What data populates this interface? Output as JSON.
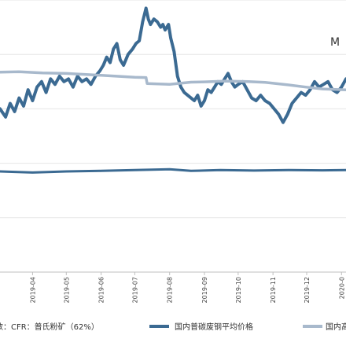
{
  "chart_data": {
    "type": "line",
    "corner_text": "M",
    "x_ticks": [
      "2019-04",
      "2019-05",
      "2019-06",
      "2019-07",
      "2019-08",
      "2019-09",
      "2019-10",
      "2019-11",
      "2019-12",
      "2020-0"
    ],
    "legend": [
      {
        "label": "数：CFR：普氏粉矿（62%）",
        "color": "#d9d9d9",
        "style": "none"
      },
      {
        "label": "国内普碳废钢平均价格",
        "color": "#3b6a92",
        "style": "line"
      },
      {
        "label": "国内高",
        "color": "#a8b9cc",
        "style": "line"
      }
    ],
    "x_range": [
      "2019-03-03",
      "2020-01-05"
    ],
    "y_range": [
      0,
      100
    ],
    "grid": "horizontal",
    "series": [
      {
        "name": "",
        "color": "#3b6a92",
        "points": [
          [
            "2019-03-03",
            60
          ],
          [
            "2019-03-08",
            57
          ],
          [
            "2019-03-12",
            62
          ],
          [
            "2019-03-16",
            59
          ],
          [
            "2019-03-20",
            64
          ],
          [
            "2019-03-24",
            61
          ],
          [
            "2019-03-28",
            67
          ],
          [
            "2019-04-01",
            63
          ],
          [
            "2019-04-05",
            68
          ],
          [
            "2019-04-09",
            70
          ],
          [
            "2019-04-13",
            66
          ],
          [
            "2019-04-17",
            71
          ],
          [
            "2019-04-21",
            69
          ],
          [
            "2019-04-25",
            72
          ],
          [
            "2019-04-29",
            70
          ],
          [
            "2019-05-03",
            71
          ],
          [
            "2019-05-07",
            68
          ],
          [
            "2019-05-11",
            72
          ],
          [
            "2019-05-15",
            70
          ],
          [
            "2019-05-19",
            71
          ],
          [
            "2019-05-23",
            69
          ],
          [
            "2019-05-27",
            72
          ],
          [
            "2019-05-31",
            74
          ],
          [
            "2019-06-03",
            76
          ],
          [
            "2019-06-06",
            79
          ],
          [
            "2019-06-09",
            77
          ],
          [
            "2019-06-12",
            82
          ],
          [
            "2019-06-15",
            84
          ],
          [
            "2019-06-18",
            78
          ],
          [
            "2019-06-21",
            76
          ],
          [
            "2019-06-25",
            80
          ],
          [
            "2019-06-29",
            82
          ],
          [
            "2019-07-02",
            84
          ],
          [
            "2019-07-05",
            85
          ],
          [
            "2019-07-08",
            92
          ],
          [
            "2019-07-11",
            97
          ],
          [
            "2019-07-13",
            93
          ],
          [
            "2019-07-15",
            91
          ],
          [
            "2019-07-18",
            93
          ],
          [
            "2019-07-21",
            92
          ],
          [
            "2019-07-24",
            90
          ],
          [
            "2019-07-26",
            91
          ],
          [
            "2019-07-28",
            89
          ],
          [
            "2019-07-31",
            91
          ],
          [
            "2019-08-02",
            86
          ],
          [
            "2019-08-05",
            81
          ],
          [
            "2019-08-08",
            72
          ],
          [
            "2019-08-11",
            68
          ],
          [
            "2019-08-14",
            66
          ],
          [
            "2019-08-17",
            65
          ],
          [
            "2019-08-20",
            64
          ],
          [
            "2019-08-23",
            63
          ],
          [
            "2019-08-26",
            65
          ],
          [
            "2019-08-29",
            61
          ],
          [
            "2019-09-01",
            63
          ],
          [
            "2019-09-04",
            67
          ],
          [
            "2019-09-07",
            66
          ],
          [
            "2019-09-10",
            68
          ],
          [
            "2019-09-13",
            70
          ],
          [
            "2019-09-16",
            69
          ],
          [
            "2019-09-19",
            71
          ],
          [
            "2019-09-22",
            73
          ],
          [
            "2019-09-25",
            70
          ],
          [
            "2019-09-28",
            68
          ],
          [
            "2019-10-01",
            69
          ],
          [
            "2019-10-05",
            70
          ],
          [
            "2019-10-09",
            67
          ],
          [
            "2019-10-13",
            64
          ],
          [
            "2019-10-17",
            63
          ],
          [
            "2019-10-21",
            65
          ],
          [
            "2019-10-25",
            63
          ],
          [
            "2019-10-29",
            62
          ],
          [
            "2019-11-02",
            60
          ],
          [
            "2019-11-06",
            58
          ],
          [
            "2019-11-10",
            55
          ],
          [
            "2019-11-14",
            58
          ],
          [
            "2019-11-18",
            62
          ],
          [
            "2019-11-22",
            64
          ],
          [
            "2019-11-26",
            66
          ],
          [
            "2019-11-30",
            65
          ],
          [
            "2019-12-04",
            67
          ],
          [
            "2019-12-08",
            70
          ],
          [
            "2019-12-12",
            68
          ],
          [
            "2019-12-16",
            69
          ],
          [
            "2019-12-20",
            70
          ],
          [
            "2019-12-24",
            67
          ],
          [
            "2019-12-28",
            66
          ],
          [
            "2020-01-01",
            68
          ],
          [
            "2020-01-05",
            71
          ]
        ]
      },
      {
        "name": "",
        "color": "#a8b9cc",
        "points": [
          [
            "2019-03-03",
            73.5
          ],
          [
            "2019-03-20",
            73.6
          ],
          [
            "2019-04-10",
            73.2
          ],
          [
            "2019-05-01",
            73.0
          ],
          [
            "2019-06-01",
            72.3
          ],
          [
            "2019-07-01",
            71.6
          ],
          [
            "2019-07-11",
            71.5
          ],
          [
            "2019-07-12",
            69.3
          ],
          [
            "2019-08-01",
            69.0
          ],
          [
            "2019-08-20",
            69.8
          ],
          [
            "2019-09-01",
            69.9
          ],
          [
            "2019-09-20",
            70.2
          ],
          [
            "2019-10-10",
            70.0
          ],
          [
            "2019-10-25",
            69.7
          ],
          [
            "2019-11-15",
            68.8
          ],
          [
            "2019-11-30",
            68.0
          ],
          [
            "2019-12-15",
            67.3
          ],
          [
            "2020-01-05",
            67.0
          ]
        ]
      },
      {
        "name": "",
        "color": "#3b6a92",
        "points": [
          [
            "2019-03-03",
            37.0
          ],
          [
            "2019-04-01",
            36.6
          ],
          [
            "2019-05-01",
            37.0
          ],
          [
            "2019-06-01",
            37.2
          ],
          [
            "2019-07-01",
            37.5
          ],
          [
            "2019-08-01",
            37.8
          ],
          [
            "2019-08-20",
            37.2
          ],
          [
            "2019-09-15",
            37.5
          ],
          [
            "2019-10-15",
            37.3
          ],
          [
            "2019-11-15",
            37.5
          ],
          [
            "2019-12-15",
            37.4
          ],
          [
            "2020-01-05",
            37.5
          ]
        ]
      }
    ]
  }
}
